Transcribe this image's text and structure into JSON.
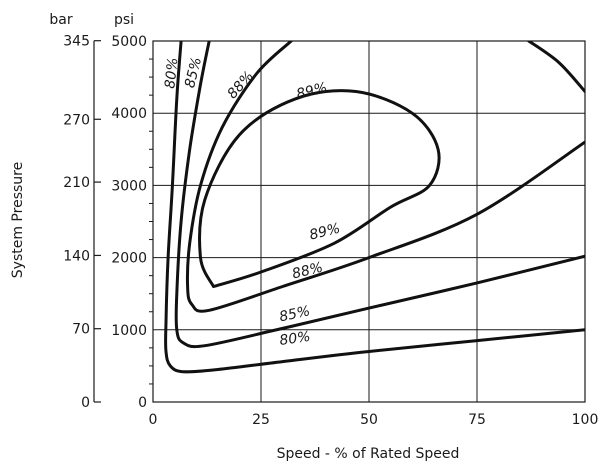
{
  "chart_data": {
    "type": "line",
    "title": "",
    "xlabel": "Speed - % of Rated Speed",
    "ylabel": "System Pressure",
    "xlim": [
      0,
      100
    ],
    "ylim": [
      0,
      5000
    ],
    "grid": true,
    "x_ticks": [
      "0",
      "25",
      "50",
      "75",
      "100"
    ],
    "y_ticks_psi": [
      "0",
      "1000",
      "2000",
      "3000",
      "4000",
      "5000"
    ],
    "y_unit_psi": "psi",
    "y_unit_bar": "bar",
    "y_ticks_bar": [
      {
        "label": "0",
        "psi": 0
      },
      {
        "label": "70",
        "psi": 1015
      },
      {
        "label": "140",
        "psi": 2030
      },
      {
        "label": "210",
        "psi": 3046
      },
      {
        "label": "270",
        "psi": 3916
      },
      {
        "label": "345",
        "psi": 5004
      }
    ],
    "series": [
      {
        "name": "80%",
        "points": [
          [
            6.5,
            5000
          ],
          [
            5.5,
            4200
          ],
          [
            4.5,
            3000
          ],
          [
            3.5,
            2000
          ],
          [
            3,
            1100
          ],
          [
            3,
            700
          ],
          [
            4,
            500
          ],
          [
            7,
            420
          ],
          [
            15,
            450
          ],
          [
            30,
            560
          ],
          [
            50,
            700
          ],
          [
            75,
            850
          ],
          [
            100,
            1000
          ]
        ]
      },
      {
        "name": "85%",
        "points": [
          [
            13,
            5000
          ],
          [
            11,
            4400
          ],
          [
            8.5,
            3500
          ],
          [
            6.5,
            2500
          ],
          [
            5.5,
            1500
          ],
          [
            5.5,
            1000
          ],
          [
            7,
            820
          ],
          [
            12,
            780
          ],
          [
            30,
            1020
          ],
          [
            50,
            1300
          ],
          [
            75,
            1650
          ],
          [
            100,
            2020
          ]
        ]
      },
      {
        "name": "88%",
        "points": [
          [
            32,
            5000
          ],
          [
            24,
            4550
          ],
          [
            16,
            3800
          ],
          [
            11,
            3000
          ],
          [
            8.5,
            2200
          ],
          [
            8,
            1600
          ],
          [
            9,
            1350
          ],
          [
            13,
            1270
          ],
          [
            30,
            1600
          ],
          [
            50,
            2000
          ],
          [
            75,
            2600
          ],
          [
            100,
            3600
          ]
        ]
      },
      {
        "name": "89%",
        "points": [
          [
            14,
            1600
          ],
          [
            11,
            2000
          ],
          [
            12,
            2800
          ],
          [
            20,
            3700
          ],
          [
            33,
            4200
          ],
          [
            47,
            4300
          ],
          [
            60,
            4000
          ],
          [
            66,
            3500
          ],
          [
            64,
            3000
          ],
          [
            55,
            2700
          ],
          [
            42,
            2200
          ],
          [
            25,
            1800
          ],
          [
            14,
            1600
          ]
        ]
      },
      {
        "name": "",
        "points": [
          [
            87,
            5000
          ],
          [
            94,
            4700
          ],
          [
            100,
            4300
          ]
        ]
      }
    ],
    "labels": [
      {
        "text": "80%",
        "x": 5.3,
        "y": 4550,
        "angle": -84
      },
      {
        "text": "85%",
        "x": 10.3,
        "y": 4550,
        "angle": -76
      },
      {
        "text": "88%",
        "x": 21,
        "y": 4350,
        "angle": -48
      },
      {
        "text": "89%",
        "x": 37,
        "y": 4250,
        "angle": -14
      },
      {
        "text": "89%",
        "x": 40,
        "y": 2300,
        "angle": -14
      },
      {
        "text": "88%",
        "x": 36,
        "y": 1760,
        "angle": -14
      },
      {
        "text": "85%",
        "x": 33,
        "y": 1160,
        "angle": -12
      },
      {
        "text": "80%",
        "x": 33,
        "y": 820,
        "angle": -8
      }
    ]
  }
}
